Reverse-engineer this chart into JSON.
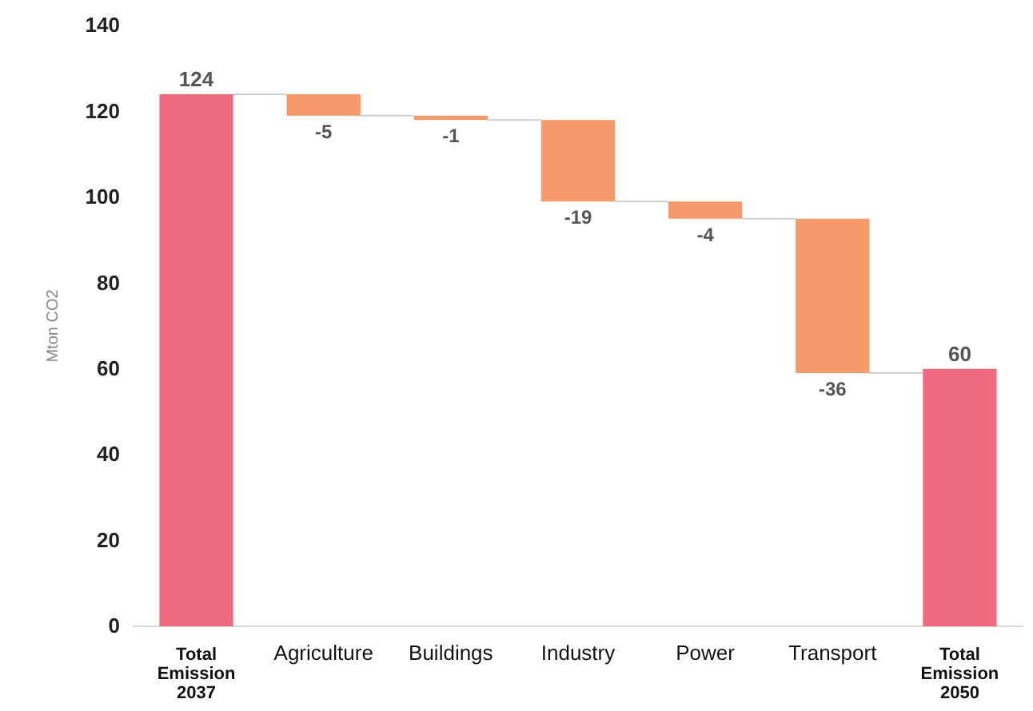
{
  "chart_data": {
    "type": "bar",
    "ylabel": "Mton CO2",
    "categories": [
      "Total Emission 2037",
      "Agriculture",
      "Buildings",
      "Industry",
      "Power",
      "Transport",
      "Total Emission 2050"
    ],
    "values": [
      124,
      -5,
      -1,
      -19,
      -4,
      -36,
      60
    ],
    "base": [
      0,
      124,
      119,
      118,
      99,
      95,
      0
    ],
    "colors": [
      "#f06b80",
      "#f79a6b",
      "#f79a6b",
      "#f79a6b",
      "#f79a6b",
      "#f79a6b",
      "#f06b80"
    ],
    "ylim": [
      0,
      140
    ],
    "yticks": [
      0,
      20,
      40,
      60,
      80,
      100,
      120,
      140
    ],
    "data_labels": true,
    "grid": false
  }
}
